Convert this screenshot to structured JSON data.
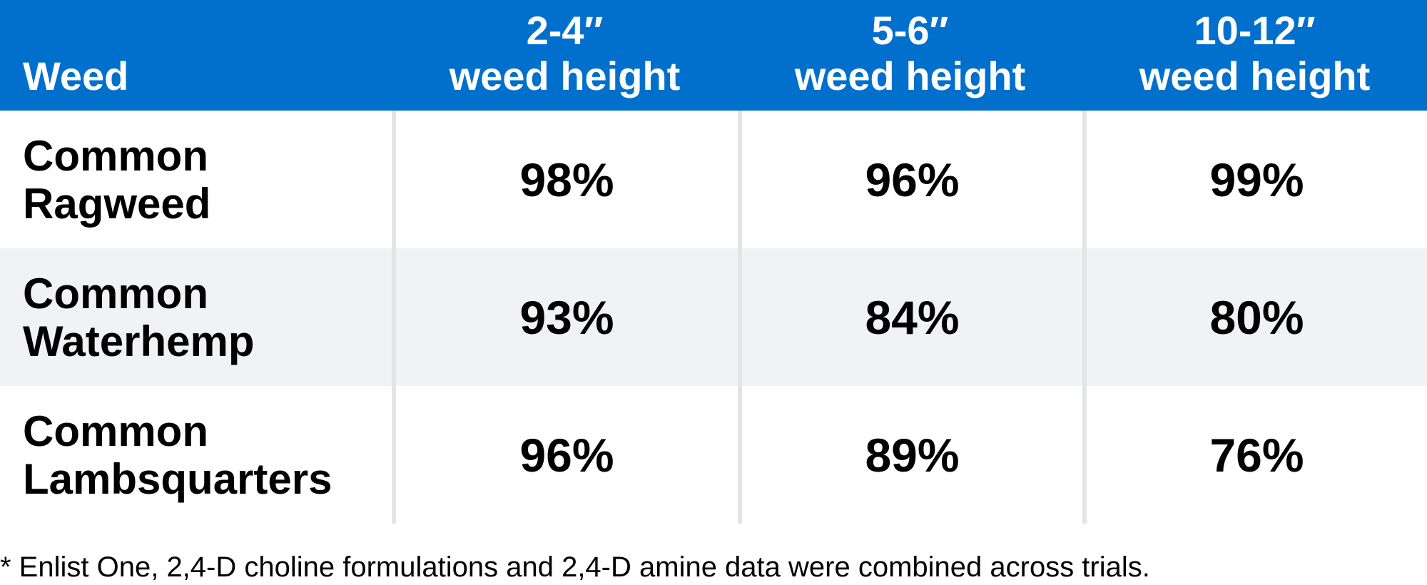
{
  "chart_data": {
    "type": "table",
    "columns": [
      {
        "line1": "",
        "line2": "Weed"
      },
      {
        "line1": "2-4″",
        "line2": "weed height"
      },
      {
        "line1": "5-6″",
        "line2": "weed height"
      },
      {
        "line1": "10-12″",
        "line2": "weed height"
      }
    ],
    "rows": [
      {
        "weed_line1": "Common",
        "weed_line2": "Ragweed",
        "values": [
          "98%",
          "96%",
          "99%"
        ]
      },
      {
        "weed_line1": "Common",
        "weed_line2": "Waterhemp",
        "values": [
          "93%",
          "84%",
          "80%"
        ]
      },
      {
        "weed_line1": "Common",
        "weed_line2": "Lambsquarters",
        "values": [
          "96%",
          "89%",
          "76%"
        ]
      }
    ],
    "footnote": "* Enlist One, 2,4-D choline formulations and 2,4-D amine data were combined across trials.",
    "colors": {
      "header_bg": "#0070CC",
      "header_text": "#FFFFFF",
      "shaded_row_bg": "#F1F2F4",
      "divider": "#E3E4E6"
    }
  }
}
